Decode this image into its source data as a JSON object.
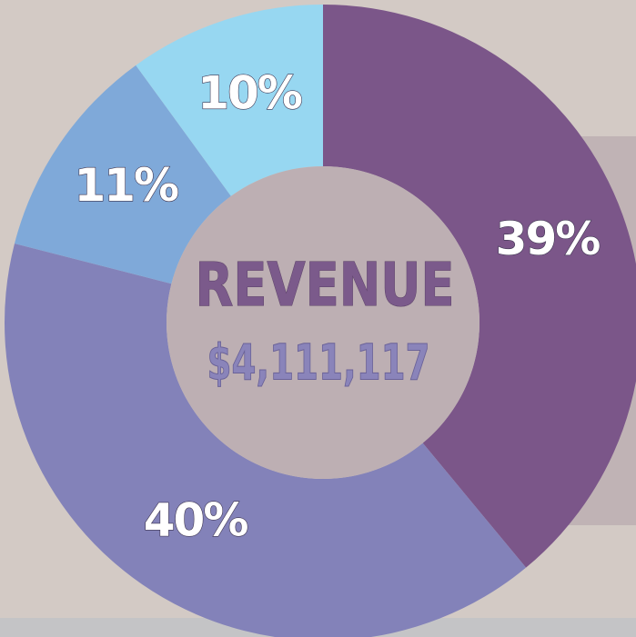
{
  "chart_data": {
    "type": "donut",
    "title": "REVENUE",
    "subtitle": "$4,111,117",
    "values": [
      39,
      40,
      11,
      10
    ],
    "value_labels": [
      "39%",
      "40%",
      "11%",
      "10%"
    ],
    "colors": [
      "#7b5689",
      "#8382b9",
      "#7fa9d9",
      "#97d7f1"
    ]
  }
}
